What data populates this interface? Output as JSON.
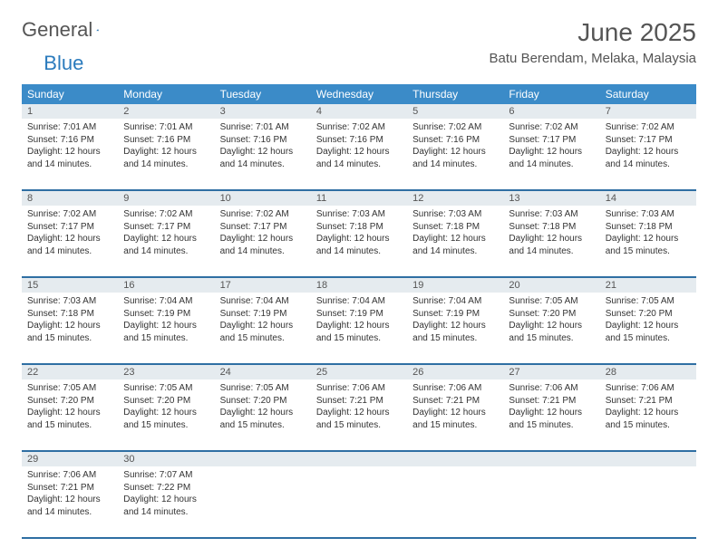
{
  "logo": {
    "part1": "General",
    "part2": "Blue"
  },
  "title": "June 2025",
  "location": "Batu Berendam, Melaka, Malaysia",
  "colors": {
    "header_bg": "#3b8bc8",
    "header_text": "#ffffff",
    "daynum_bg": "#e5ebef",
    "border": "#2f6fa3",
    "logo_blue": "#2b7bbd",
    "text": "#333333"
  },
  "daysOfWeek": [
    "Sunday",
    "Monday",
    "Tuesday",
    "Wednesday",
    "Thursday",
    "Friday",
    "Saturday"
  ],
  "weeks": [
    [
      {
        "n": "1",
        "sr": "7:01 AM",
        "ss": "7:16 PM",
        "dl": "12 hours and 14 minutes."
      },
      {
        "n": "2",
        "sr": "7:01 AM",
        "ss": "7:16 PM",
        "dl": "12 hours and 14 minutes."
      },
      {
        "n": "3",
        "sr": "7:01 AM",
        "ss": "7:16 PM",
        "dl": "12 hours and 14 minutes."
      },
      {
        "n": "4",
        "sr": "7:02 AM",
        "ss": "7:16 PM",
        "dl": "12 hours and 14 minutes."
      },
      {
        "n": "5",
        "sr": "7:02 AM",
        "ss": "7:16 PM",
        "dl": "12 hours and 14 minutes."
      },
      {
        "n": "6",
        "sr": "7:02 AM",
        "ss": "7:17 PM",
        "dl": "12 hours and 14 minutes."
      },
      {
        "n": "7",
        "sr": "7:02 AM",
        "ss": "7:17 PM",
        "dl": "12 hours and 14 minutes."
      }
    ],
    [
      {
        "n": "8",
        "sr": "7:02 AM",
        "ss": "7:17 PM",
        "dl": "12 hours and 14 minutes."
      },
      {
        "n": "9",
        "sr": "7:02 AM",
        "ss": "7:17 PM",
        "dl": "12 hours and 14 minutes."
      },
      {
        "n": "10",
        "sr": "7:02 AM",
        "ss": "7:17 PM",
        "dl": "12 hours and 14 minutes."
      },
      {
        "n": "11",
        "sr": "7:03 AM",
        "ss": "7:18 PM",
        "dl": "12 hours and 14 minutes."
      },
      {
        "n": "12",
        "sr": "7:03 AM",
        "ss": "7:18 PM",
        "dl": "12 hours and 14 minutes."
      },
      {
        "n": "13",
        "sr": "7:03 AM",
        "ss": "7:18 PM",
        "dl": "12 hours and 14 minutes."
      },
      {
        "n": "14",
        "sr": "7:03 AM",
        "ss": "7:18 PM",
        "dl": "12 hours and 15 minutes."
      }
    ],
    [
      {
        "n": "15",
        "sr": "7:03 AM",
        "ss": "7:18 PM",
        "dl": "12 hours and 15 minutes."
      },
      {
        "n": "16",
        "sr": "7:04 AM",
        "ss": "7:19 PM",
        "dl": "12 hours and 15 minutes."
      },
      {
        "n": "17",
        "sr": "7:04 AM",
        "ss": "7:19 PM",
        "dl": "12 hours and 15 minutes."
      },
      {
        "n": "18",
        "sr": "7:04 AM",
        "ss": "7:19 PM",
        "dl": "12 hours and 15 minutes."
      },
      {
        "n": "19",
        "sr": "7:04 AM",
        "ss": "7:19 PM",
        "dl": "12 hours and 15 minutes."
      },
      {
        "n": "20",
        "sr": "7:05 AM",
        "ss": "7:20 PM",
        "dl": "12 hours and 15 minutes."
      },
      {
        "n": "21",
        "sr": "7:05 AM",
        "ss": "7:20 PM",
        "dl": "12 hours and 15 minutes."
      }
    ],
    [
      {
        "n": "22",
        "sr": "7:05 AM",
        "ss": "7:20 PM",
        "dl": "12 hours and 15 minutes."
      },
      {
        "n": "23",
        "sr": "7:05 AM",
        "ss": "7:20 PM",
        "dl": "12 hours and 15 minutes."
      },
      {
        "n": "24",
        "sr": "7:05 AM",
        "ss": "7:20 PM",
        "dl": "12 hours and 15 minutes."
      },
      {
        "n": "25",
        "sr": "7:06 AM",
        "ss": "7:21 PM",
        "dl": "12 hours and 15 minutes."
      },
      {
        "n": "26",
        "sr": "7:06 AM",
        "ss": "7:21 PM",
        "dl": "12 hours and 15 minutes."
      },
      {
        "n": "27",
        "sr": "7:06 AM",
        "ss": "7:21 PM",
        "dl": "12 hours and 15 minutes."
      },
      {
        "n": "28",
        "sr": "7:06 AM",
        "ss": "7:21 PM",
        "dl": "12 hours and 15 minutes."
      }
    ],
    [
      {
        "n": "29",
        "sr": "7:06 AM",
        "ss": "7:21 PM",
        "dl": "12 hours and 14 minutes."
      },
      {
        "n": "30",
        "sr": "7:07 AM",
        "ss": "7:22 PM",
        "dl": "12 hours and 14 minutes."
      },
      null,
      null,
      null,
      null,
      null
    ]
  ],
  "labels": {
    "sunrise": "Sunrise:",
    "sunset": "Sunset:",
    "daylight": "Daylight:"
  }
}
